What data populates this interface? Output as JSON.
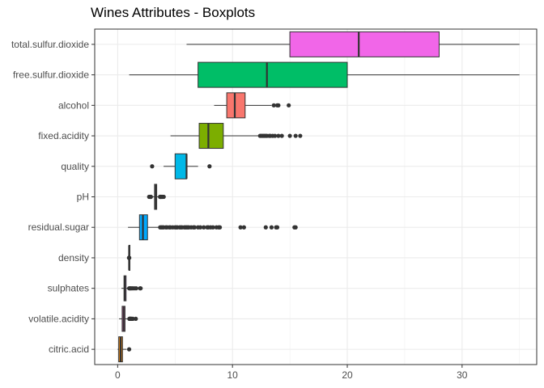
{
  "chart_data": {
    "type": "boxplot",
    "title": "Wines Attributes - Boxplots",
    "xlabel": "",
    "ylabel": "",
    "xlim": [
      -2,
      36.5
    ],
    "x_ticks": [
      0,
      10,
      20,
      30
    ],
    "grid": true,
    "legend": "none",
    "categories": [
      "total.sulfur.dioxide",
      "free.sulfur.dioxide",
      "alcohol",
      "fixed.acidity",
      "quality",
      "pH",
      "residual.sugar",
      "density",
      "sulphates",
      "volatile.acidity",
      "citric.acid"
    ],
    "boxes": [
      {
        "name": "total.sulfur.dioxide",
        "color": "#F166E8",
        "lower_whisker": 6,
        "q1": 15,
        "median": 21,
        "q3": 28,
        "upper_whisker": 35,
        "outliers": []
      },
      {
        "name": "free.sulfur.dioxide",
        "color": "#00BE67",
        "lower_whisker": 1,
        "q1": 7,
        "median": 13,
        "q3": 20,
        "upper_whisker": 35,
        "outliers": []
      },
      {
        "name": "alcohol",
        "color": "#F8766D",
        "lower_whisker": 8.4,
        "q1": 9.5,
        "median": 10.2,
        "q3": 11.1,
        "upper_whisker": 13.4,
        "outliers": [
          13.6,
          13.9,
          14.0,
          14.9
        ]
      },
      {
        "name": "fixed.acidity",
        "color": "#7CAE00",
        "lower_whisker": 4.6,
        "q1": 7.1,
        "median": 7.9,
        "q3": 9.2,
        "upper_whisker": 12.3,
        "outliers": [
          12.4,
          12.5,
          12.6,
          12.7,
          12.8,
          12.9,
          13.0,
          13.2,
          13.3,
          13.5,
          13.7,
          14.0,
          14.3,
          15.0,
          15.5,
          15.9
        ]
      },
      {
        "name": "quality",
        "color": "#00B8E7",
        "lower_whisker": 4,
        "q1": 5,
        "median": 6,
        "q3": 6,
        "upper_whisker": 7,
        "outliers": [
          3,
          8
        ]
      },
      {
        "name": "pH",
        "color": "#C2C2C2",
        "lower_whisker": 2.93,
        "q1": 3.21,
        "median": 3.31,
        "q3": 3.4,
        "upper_whisker": 3.68,
        "outliers": [
          2.74,
          2.86,
          2.88,
          2.89,
          3.69,
          3.71,
          3.74,
          3.78,
          3.85,
          3.9,
          4.01
        ]
      },
      {
        "name": "residual.sugar",
        "color": "#00A9FF",
        "lower_whisker": 0.9,
        "q1": 1.9,
        "median": 2.2,
        "q3": 2.6,
        "upper_whisker": 3.6,
        "outliers": [
          3.7,
          3.8,
          3.9,
          4.0,
          4.2,
          4.3,
          4.5,
          4.6,
          4.8,
          5.0,
          5.1,
          5.2,
          5.4,
          5.5,
          5.6,
          5.8,
          5.9,
          6.0,
          6.1,
          6.2,
          6.4,
          6.6,
          6.7,
          7.0,
          7.2,
          7.5,
          7.8,
          7.9,
          8.1,
          8.3,
          8.6,
          8.8,
          8.9,
          10.7,
          11.0,
          12.9,
          13.4,
          13.8,
          13.9,
          15.4,
          15.5
        ]
      },
      {
        "name": "density",
        "color": "#8494FF",
        "lower_whisker": 0.9923,
        "q1": 0.9956,
        "median": 0.9968,
        "q3": 0.9978,
        "upper_whisker": 1.001,
        "outliers": [
          0.9901,
          0.9915,
          1.002,
          1.0037
        ]
      },
      {
        "name": "sulphates",
        "color": "#C77CFF",
        "lower_whisker": 0.33,
        "q1": 0.55,
        "median": 0.62,
        "q3": 0.73,
        "upper_whisker": 0.99,
        "outliers": [
          1.0,
          1.05,
          1.1,
          1.17,
          1.26,
          1.36,
          1.5,
          1.62,
          1.95,
          2.0
        ]
      },
      {
        "name": "volatile.acidity",
        "color": "#FF61C3",
        "lower_whisker": 0.12,
        "q1": 0.39,
        "median": 0.52,
        "q3": 0.64,
        "upper_whisker": 1.01,
        "outliers": [
          1.02,
          1.04,
          1.07,
          1.09,
          1.13,
          1.18,
          1.24,
          1.33,
          1.58
        ]
      },
      {
        "name": "citric.acid",
        "color": "#E68613",
        "lower_whisker": 0.0,
        "q1": 0.09,
        "median": 0.26,
        "q3": 0.42,
        "upper_whisker": 0.79,
        "outliers": [
          1.0
        ]
      }
    ]
  }
}
